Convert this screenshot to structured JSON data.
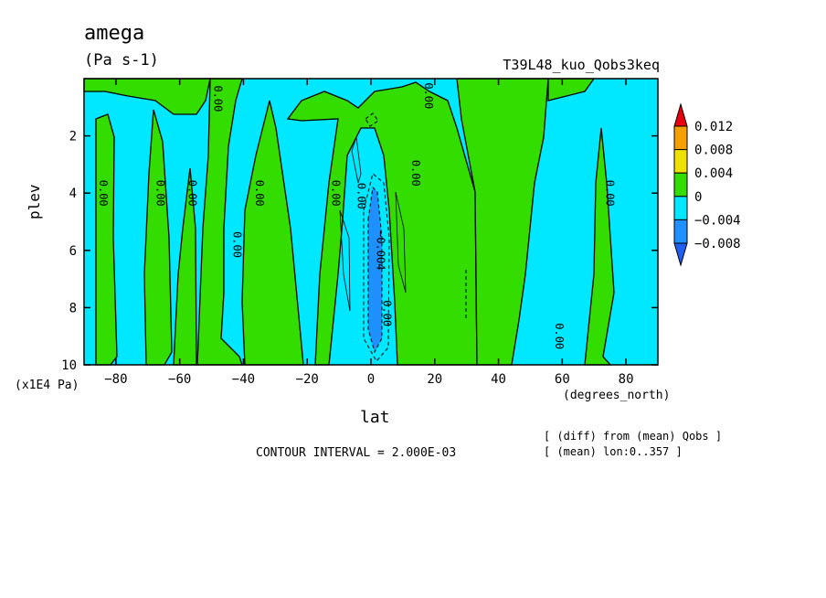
{
  "chart_data": {
    "type": "heatmap",
    "title": "amega",
    "units": "(Pa s-1)",
    "run_name": "T39L48_kuo_Qobs3keq",
    "xlabel": "lat",
    "x_unit_label": "(degrees_north)",
    "ylabel": "plev",
    "y_unit_label": "(x1E4 Pa)",
    "xlim": [
      -90,
      90
    ],
    "ylim": [
      10,
      0
    ],
    "x_ticks": [
      {
        "value": -80,
        "label": "-80"
      },
      {
        "value": -60,
        "label": "-60"
      },
      {
        "value": -40,
        "label": "-40"
      },
      {
        "value": -20,
        "label": "-20"
      },
      {
        "value": 0,
        "label": "0"
      },
      {
        "value": 20,
        "label": "20"
      },
      {
        "value": 40,
        "label": "40"
      },
      {
        "value": 60,
        "label": "60"
      },
      {
        "value": 80,
        "label": "80"
      }
    ],
    "y_ticks": [
      {
        "value": 2,
        "label": "2"
      },
      {
        "value": 4,
        "label": "4"
      },
      {
        "value": 6,
        "label": "6"
      },
      {
        "value": 8,
        "label": "8"
      },
      {
        "value": 10,
        "label": "10"
      }
    ],
    "colorbar": {
      "levels": [
        "0.012",
        "0.008",
        "0.004",
        "0",
        "-0.004",
        "-0.008"
      ],
      "colors": [
        "#e8000f",
        "#f5a000",
        "#f0e000",
        "#33dd00",
        "#00e8ff",
        "#1e90ff",
        "#1f5ff0"
      ]
    },
    "contour_labels": [
      {
        "lat": -84,
        "plev": 4.0,
        "text": "0.00"
      },
      {
        "lat": -66,
        "plev": 4.0,
        "text": "0.00"
      },
      {
        "lat": -56,
        "plev": 4.0,
        "text": "0.00"
      },
      {
        "lat": -48,
        "plev": 0.7,
        "text": "0.00"
      },
      {
        "lat": -35,
        "plev": 4.0,
        "text": "0.00"
      },
      {
        "lat": -42,
        "plev": 5.8,
        "text": "0.00"
      },
      {
        "lat": -11,
        "plev": 4.0,
        "text": "0.00"
      },
      {
        "lat": -3,
        "plev": 4.1,
        "text": "0.00"
      },
      {
        "lat": 3,
        "plev": 6.0,
        "text": "-0.004"
      },
      {
        "lat": 5,
        "plev": 8.2,
        "text": "0.00"
      },
      {
        "lat": 14,
        "plev": 3.3,
        "text": "0.00"
      },
      {
        "lat": 18,
        "plev": 0.6,
        "text": "0.00"
      },
      {
        "lat": 59,
        "plev": 9.0,
        "text": "0.00"
      },
      {
        "lat": 75,
        "plev": 4.0,
        "text": "0.00"
      }
    ],
    "contour_interval": "CONTOUR INTERVAL = 2.000E-03",
    "notes": [
      "[ (diff) from (mean) Qobs ]",
      "[ (mean) lon:0..357 ]"
    ]
  }
}
